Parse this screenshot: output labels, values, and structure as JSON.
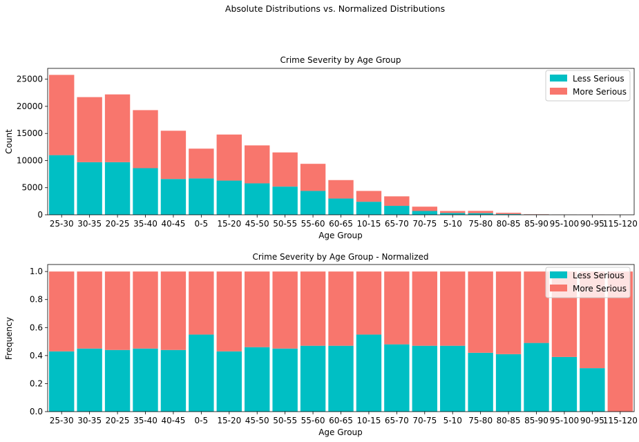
{
  "figure": {
    "title": "Absolute Distributions vs. Normalized Distributions"
  },
  "colors": {
    "less": "#00BFC4",
    "more": "#F8766D"
  },
  "chart_data": [
    {
      "type": "bar",
      "stacked": true,
      "title": "Crime Severity by Age Group",
      "xlabel": "Age Group",
      "ylabel": "Count",
      "ylim": [
        0,
        27000
      ],
      "yticks": [
        0,
        5000,
        10000,
        15000,
        20000,
        25000
      ],
      "grid": false,
      "legend_position": "top-right",
      "categories": [
        "25-30",
        "30-35",
        "20-25",
        "35-40",
        "40-45",
        "0-5",
        "15-20",
        "45-50",
        "50-55",
        "55-60",
        "60-65",
        "10-15",
        "65-70",
        "70-75",
        "5-10",
        "75-80",
        "80-85",
        "85-90",
        "95-100",
        "90-95",
        "115-120"
      ],
      "series": [
        {
          "name": "Less Serious",
          "values": [
            11000,
            9700,
            9700,
            8600,
            6600,
            6700,
            6300,
            5800,
            5200,
            4400,
            3000,
            2400,
            1650,
            700,
            330,
            300,
            150,
            60,
            20,
            10,
            0
          ]
        },
        {
          "name": "More Serious",
          "values": [
            14800,
            12000,
            12500,
            10700,
            8900,
            5500,
            8500,
            7000,
            6300,
            5000,
            3400,
            2000,
            1750,
            800,
            370,
            420,
            220,
            40,
            30,
            30,
            5
          ]
        }
      ]
    },
    {
      "type": "bar",
      "stacked": true,
      "title": "Crime Severity by Age Group - Normalized",
      "xlabel": "Age Group",
      "ylabel": "Frequency",
      "ylim": [
        0,
        1.05
      ],
      "yticks": [
        0.0,
        0.2,
        0.4,
        0.6,
        0.8,
        1.0
      ],
      "grid": false,
      "legend_position": "top-right",
      "categories": [
        "25-30",
        "30-35",
        "20-25",
        "35-40",
        "40-45",
        "0-5",
        "15-20",
        "45-50",
        "50-55",
        "55-60",
        "60-65",
        "10-15",
        "65-70",
        "70-75",
        "5-10",
        "75-80",
        "80-85",
        "85-90",
        "95-100",
        "90-95",
        "115-120"
      ],
      "series": [
        {
          "name": "Less Serious",
          "values": [
            0.43,
            0.45,
            0.44,
            0.45,
            0.44,
            0.55,
            0.43,
            0.46,
            0.45,
            0.47,
            0.47,
            0.55,
            0.48,
            0.47,
            0.47,
            0.42,
            0.41,
            0.49,
            0.39,
            0.31,
            0.0
          ]
        },
        {
          "name": "More Serious",
          "values": [
            0.57,
            0.55,
            0.56,
            0.55,
            0.56,
            0.45,
            0.57,
            0.54,
            0.55,
            0.53,
            0.53,
            0.45,
            0.52,
            0.53,
            0.53,
            0.58,
            0.59,
            0.51,
            0.61,
            0.69,
            1.0
          ]
        }
      ]
    }
  ]
}
